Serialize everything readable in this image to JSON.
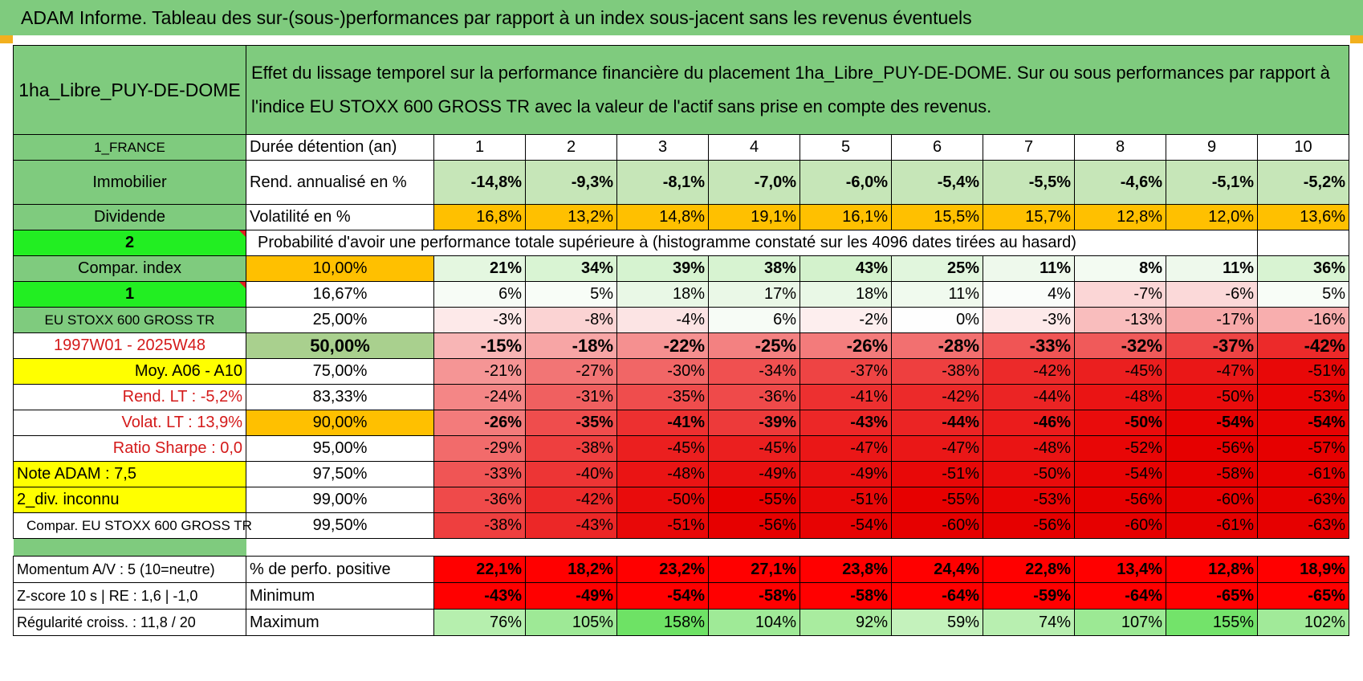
{
  "banner": "ADAM Informe. Tableau des sur-(sous-)performances par rapport à un index sous-jacent sans les revenus éventuels",
  "asset_name": "1ha_Libre_PUY-DE-DOME",
  "description": "Effet du lissage temporel sur la performance financière du placement 1ha_Libre_PUY-DE-DOME. Sur ou sous performances par rapport à l'indice EU STOXX 600 GROSS TR avec la valeur de l'actif sans prise en compte des revenus.",
  "left_labels": {
    "country": "1_FRANCE",
    "category": "Immobilier",
    "type": "Dividende",
    "sel1": "2",
    "compar_index": "Compar. index",
    "sel2": "1",
    "index_name": "EU STOXX 600 GROSS TR",
    "period": "1997W01 - 2025W48",
    "moy": "Moy. A06 - A10",
    "rend_lt": "Rend. LT :    -5,2%",
    "volat_lt": "Volat. LT :    13,9%",
    "sharpe": "Ratio Sharpe :    0,0",
    "note": "Note ADAM : 7,5",
    "div": "2_div. inconnu",
    "compar_full": "Compar. EU STOXX 600 GROSS TR",
    "momentum": "Momentum A/V : 5 (10=neutre)",
    "zscore": "Z-score 10 s | RE : 1,6 | -1,0",
    "regularite": "Régularité croiss. : 11,8 / 20"
  },
  "header_row": {
    "label": "Durée détention (an)",
    "years": [
      "1",
      "2",
      "3",
      "4",
      "5",
      "6",
      "7",
      "8",
      "9",
      "10"
    ]
  },
  "rend_row": {
    "label": "Rend. annualisé en %",
    "values": [
      "-14,8%",
      "-9,3%",
      "-8,1%",
      "-7,0%",
      "-6,0%",
      "-5,4%",
      "-5,5%",
      "-4,6%",
      "-5,1%",
      "-5,2%"
    ]
  },
  "vol_row": {
    "label": "Volatilité en %",
    "values": [
      "16,8%",
      "13,2%",
      "14,8%",
      "19,1%",
      "16,1%",
      "15,5%",
      "15,7%",
      "12,8%",
      "12,0%",
      "13,6%"
    ]
  },
  "prob_title": "Probabilité d'avoir une performance totale supérieure à (histogramme constaté sur les 4096 dates tirées au hasard)",
  "prob_rows": [
    {
      "pct": "10,00%",
      "values": [
        "21%",
        "34%",
        "39%",
        "38%",
        "43%",
        "25%",
        "11%",
        "8%",
        "11%",
        "36%"
      ],
      "colors": [
        "#e4f7e0",
        "#d9f4d3",
        "#d6f3d0",
        "#d7f3d1",
        "#d3f2cc",
        "#e1f6dd",
        "#eef9ec",
        "#f3fbf2",
        "#eef9ec",
        "#d8f3d2"
      ]
    },
    {
      "pct": "16,67%",
      "values": [
        "6%",
        "5%",
        "18%",
        "17%",
        "18%",
        "11%",
        "4%",
        "-7%",
        "-6%",
        "5%"
      ],
      "colors": [
        "#f7fcf6",
        "#f8fdf7",
        "#e9f8e6",
        "#eaf8e7",
        "#e9f8e6",
        "#f0faee",
        "#fafdfa",
        "#fbd6d6",
        "#fbd9d9",
        "#f8fdf7"
      ]
    },
    {
      "pct": "25,00%",
      "values": [
        "-3%",
        "-8%",
        "-4%",
        "6%",
        "-2%",
        "0%",
        "-3%",
        "-13%",
        "-17%",
        "-16%"
      ],
      "colors": [
        "#fde9e9",
        "#fbd3d3",
        "#fce4e4",
        "#f7fcf6",
        "#fdeeee",
        "#fefefe",
        "#fde9e9",
        "#f9bdbd",
        "#f7a9a9",
        "#f8aeae"
      ]
    },
    {
      "pct": "50,00%",
      "values": [
        "-15%",
        "-18%",
        "-22%",
        "-25%",
        "-26%",
        "-28%",
        "-33%",
        "-32%",
        "-37%",
        "-42%"
      ],
      "colors": [
        "#f8b5b5",
        "#f7a5a5",
        "#f59090",
        "#f38181",
        "#f37b7b",
        "#f27070",
        "#f05555",
        "#f05a5a",
        "#ee4444",
        "#ec2a2a"
      ]
    },
    {
      "pct": "75,00%",
      "values": [
        "-21%",
        "-27%",
        "-30%",
        "-34%",
        "-37%",
        "-38%",
        "-42%",
        "-45%",
        "-47%",
        "-51%"
      ],
      "colors": [
        "#f59595",
        "#f27575",
        "#f16666",
        "#f05050",
        "#ee4444",
        "#ee3f3f",
        "#ec2a2a",
        "#eb1f1f",
        "#ea1717",
        "#e80808"
      ]
    },
    {
      "pct": "83,33%",
      "values": [
        "-24%",
        "-31%",
        "-35%",
        "-36%",
        "-41%",
        "-42%",
        "-44%",
        "-48%",
        "-50%",
        "-53%"
      ],
      "colors": [
        "#f48686",
        "#f06060",
        "#ef4d4d",
        "#ef4a4a",
        "#ed3030",
        "#ec2a2a",
        "#eb2424",
        "#ea1414",
        "#e90c0c",
        "#e80404"
      ]
    },
    {
      "pct": "90,00%",
      "values": [
        "-26%",
        "-35%",
        "-41%",
        "-39%",
        "-43%",
        "-44%",
        "-46%",
        "-50%",
        "-54%",
        "-54%"
      ],
      "colors": [
        "#f37b7b",
        "#ef4d4d",
        "#ed3030",
        "#ed3a3a",
        "#ec2727",
        "#eb2424",
        "#eb1c1c",
        "#e90c0c",
        "#e70303",
        "#e70303"
      ]
    },
    {
      "pct": "95,00%",
      "values": [
        "-29%",
        "-38%",
        "-45%",
        "-45%",
        "-47%",
        "-47%",
        "-48%",
        "-52%",
        "-56%",
        "-57%"
      ],
      "colors": [
        "#f26b6b",
        "#ee3f3f",
        "#eb1f1f",
        "#eb1f1f",
        "#ea1717",
        "#ea1717",
        "#ea1414",
        "#e80606",
        "#e60000",
        "#e60000"
      ]
    },
    {
      "pct": "97,50%",
      "values": [
        "-33%",
        "-40%",
        "-48%",
        "-49%",
        "-49%",
        "-51%",
        "-50%",
        "-54%",
        "-58%",
        "-61%"
      ],
      "colors": [
        "#f05555",
        "#ed3535",
        "#ea1414",
        "#e91010",
        "#e91010",
        "#e80808",
        "#e90c0c",
        "#e70303",
        "#e60000",
        "#e60000"
      ]
    },
    {
      "pct": "99,00%",
      "values": [
        "-36%",
        "-42%",
        "-50%",
        "-55%",
        "-51%",
        "-55%",
        "-53%",
        "-56%",
        "-60%",
        "-63%"
      ],
      "colors": [
        "#ef4a4a",
        "#ec2a2a",
        "#e90c0c",
        "#e70000",
        "#e80808",
        "#e70000",
        "#e80404",
        "#e60000",
        "#e60000",
        "#e60000"
      ]
    },
    {
      "pct": "99,50%",
      "values": [
        "-38%",
        "-43%",
        "-51%",
        "-56%",
        "-54%",
        "-60%",
        "-56%",
        "-60%",
        "-61%",
        "-63%"
      ],
      "colors": [
        "#ee3f3f",
        "#ec2727",
        "#e80808",
        "#e60000",
        "#e70303",
        "#e60000",
        "#e60000",
        "#e60000",
        "#e60000",
        "#e60000"
      ]
    }
  ],
  "stats_rows": [
    {
      "label": "% de perfo. positive",
      "values": [
        "22,1%",
        "18,2%",
        "23,2%",
        "27,1%",
        "23,8%",
        "24,4%",
        "22,8%",
        "13,4%",
        "12,8%",
        "18,9%"
      ]
    },
    {
      "label": "Minimum",
      "values": [
        "-43%",
        "-49%",
        "-54%",
        "-58%",
        "-58%",
        "-64%",
        "-59%",
        "-64%",
        "-65%",
        "-65%"
      ]
    },
    {
      "label": "Maximum",
      "values": [
        "76%",
        "105%",
        "158%",
        "104%",
        "92%",
        "59%",
        "74%",
        "107%",
        "155%",
        "102%"
      ],
      "colors": [
        "#b6efae",
        "#9ee996",
        "#6ee265",
        "#9fea97",
        "#a9ec9f",
        "#c4f2bc",
        "#b8efb0",
        "#9ce994",
        "#73e36a",
        "#a1ea99"
      ]
    }
  ],
  "colors": {
    "title_green": "#7fcb7e",
    "rend_green": "#c6e6b8",
    "vol_orange": "#ffc000",
    "median_green": "#a9d08e",
    "stats_red": "#ff0000"
  }
}
